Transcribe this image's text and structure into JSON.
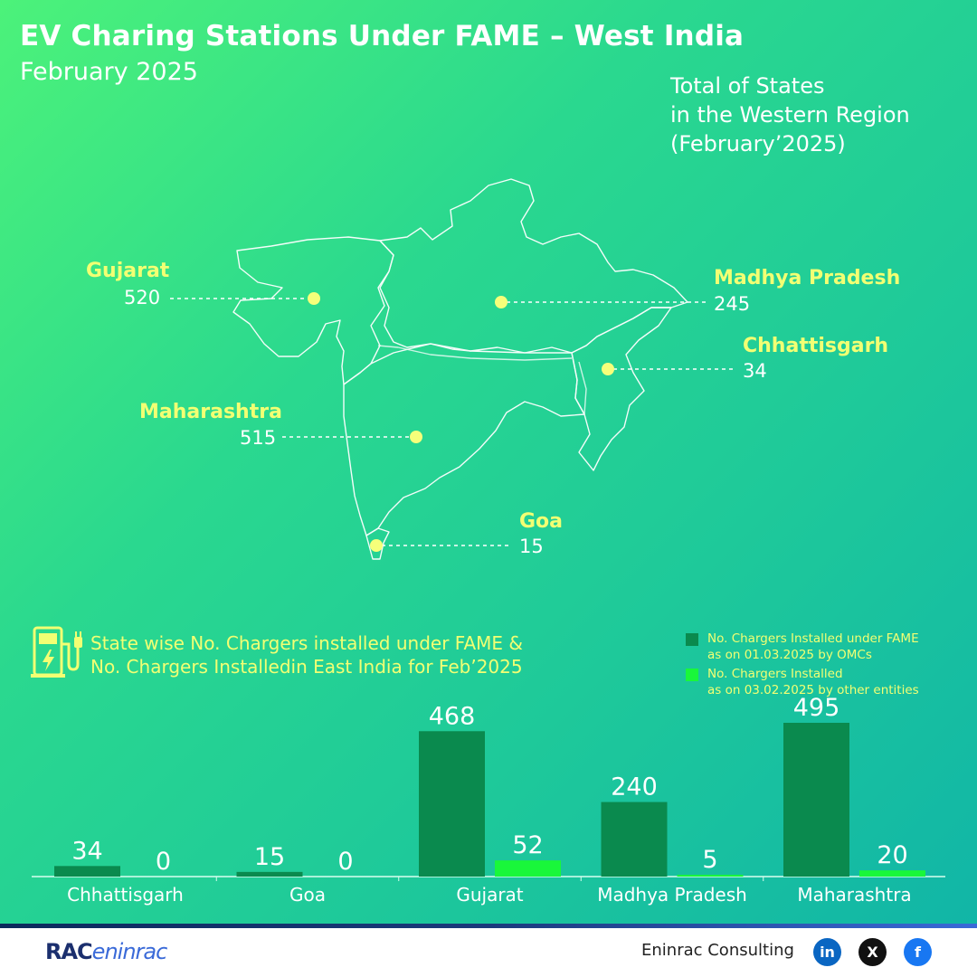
{
  "header": {
    "title": "EV Charing Stations Under FAME – West India",
    "subtitle": "February 2025"
  },
  "summary": {
    "line1": "Total of States",
    "line2": "in the Western Region",
    "line3": "(February’2025)"
  },
  "map": {
    "states": [
      {
        "name": "Gujarat",
        "value": "520"
      },
      {
        "name": "Madhya Pradesh",
        "value": "245"
      },
      {
        "name": "Chhattisgarh",
        "value": "34"
      },
      {
        "name": "Maharashtra",
        "value": "515"
      },
      {
        "name": "Goa",
        "value": "15"
      }
    ]
  },
  "section": {
    "line1": "State wise No. Chargers installed under FAME &",
    "line2": "No. Chargers Installedin East India for Feb’2025",
    "icon": "ev-charger-icon"
  },
  "legend": [
    {
      "line1": "No. Chargers Installed under FAME",
      "line2": "as on 01.03.2025 by OMCs",
      "color": "#0a8a4e"
    },
    {
      "line1": "No. Chargers Installed",
      "line2": "as on 03.02.2025 by other entities",
      "color": "#19f73a"
    }
  ],
  "chart_data": {
    "type": "bar",
    "categories": [
      "Chhattisgarh",
      "Goa",
      "Gujarat",
      "Madhya Pradesh",
      "Maharashtra"
    ],
    "series": [
      {
        "name": "No. Chargers Installed under FAME as on 01.03.2025 by OMCs",
        "values": [
          34,
          15,
          468,
          240,
          495
        ],
        "color": "#0a8a4e"
      },
      {
        "name": "No. Chargers Installed as on 03.02.2025 by other entities",
        "values": [
          0,
          0,
          52,
          5,
          20
        ],
        "color": "#19f73a"
      }
    ],
    "ylim": [
      0,
      495
    ],
    "grid": false,
    "legend_position": "top-right"
  },
  "footer": {
    "logo_main": "RAC",
    "logo_script": "eninrac",
    "brand": "Eninrac Consulting",
    "social": [
      {
        "icon": "linkedin-icon",
        "label": "in",
        "color": "#0a66c2"
      },
      {
        "icon": "x-icon",
        "label": "X",
        "color": "#111111"
      },
      {
        "icon": "facebook-icon",
        "label": "f",
        "color": "#1877f2"
      }
    ]
  }
}
